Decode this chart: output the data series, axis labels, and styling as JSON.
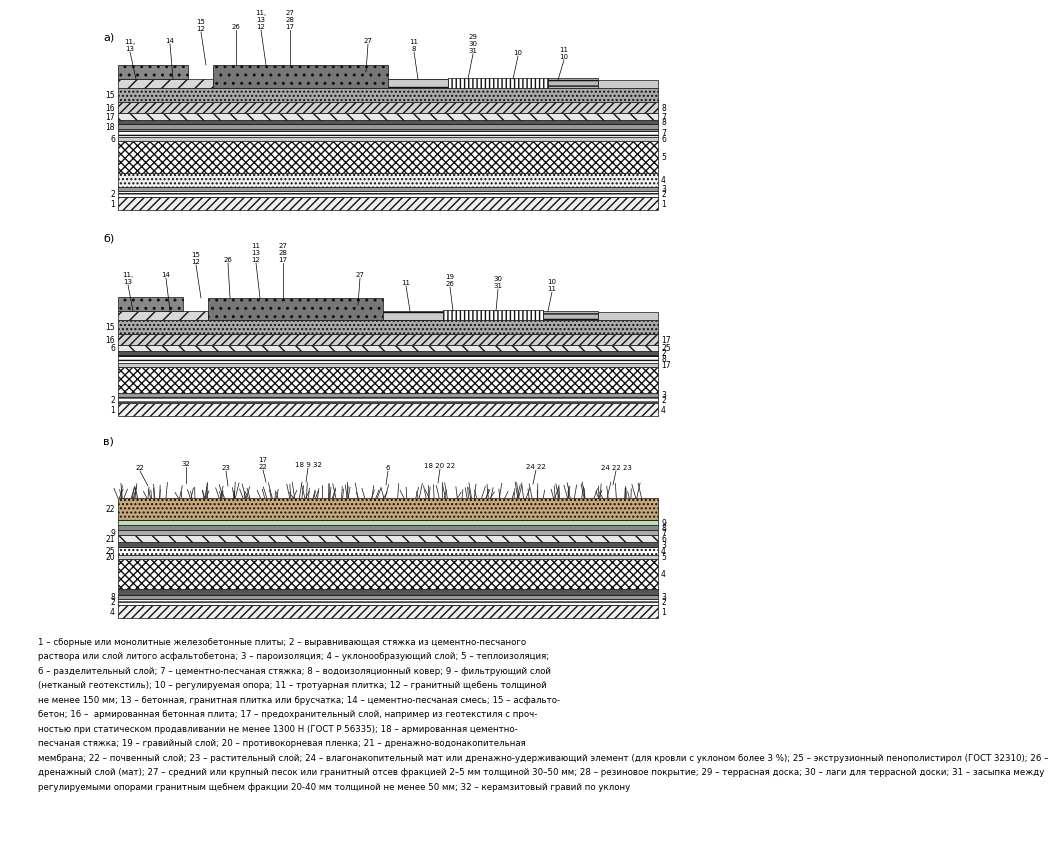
{
  "title_a": "а)",
  "title_b": "б)",
  "title_c": "в)",
  "legend_text": "1 – сборные или монолитные железобетонные плиты; 2 – выравнивающая стяжка из цементно-песчаного раствора или слой литого асфальтобетона; 3 – пароизоляция; 4 – уклонообразующий слой; 5 – теплоизоляция;\n6 – разделительный слой; 7 – цементно-песчаная стяжка; 8 – водоизоляционный ковер; 9 – фильтрующий слой (нетканый геотекстиль); 10 – регулируемая опора; 11 – тротуарная плитка; 12 – гранитный щебень толщиной\nне менее 150 мм; 13 – бетонная, гранитная плитка или брусчатка; 14 – цементно-песчаная смесь; 15 – асфальто-бетон; 16 –  армированная бетонная плита; 17 – предохранительный слой, например из геотекстиля с проч-\nностью при статическом продавливании не менее 1300 Н (ГОСТ Р 56335); 18 – армированная цементно-песчаная стяжка; 19 – гравийный слой; 20 – противокорневая пленка; 21 – дренажно-водонакопительная\nмембрана; 22 – почвенный слой; 23 – растительный слой; 24 – влагонакопительный мат или дренажно-удерживающий элемент (для кровли с уклоном более 3 %); 25 – экструзионный пенополистирол (ГОСТ 32310); 26 –\nдренажный слой (мат); 27 – средний или крупный песок или гранитный отсев фракцией 2–5 мм толщиной 30–50 мм; 28 – резиновое покрытие; 29 – террасная доска; 30 – лаги для террасной доски; 31 – засыпка между регулируемыми опорамi гранитным щебнем фракции 20-40 мм толщиной\nне менее 50 мм; 32 – керамзитовый гравий по уклону"
}
